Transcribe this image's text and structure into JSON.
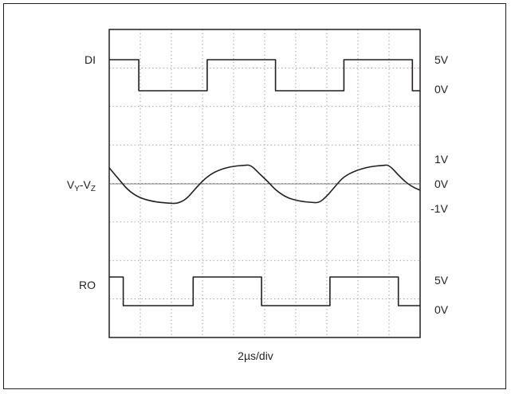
{
  "chart_data": {
    "type": "line",
    "title": "",
    "xlabel": "2µs/div",
    "divisions": {
      "x": 10,
      "y": 8
    },
    "channels": [
      {
        "name": "DI",
        "name_main": "DI",
        "name_sub": "",
        "levels": [
          "5V",
          "0V"
        ],
        "div_per_level": 1.0,
        "center_div": 6.5,
        "y_pixels_hint": "top",
        "points": [
          [
            0,
            5
          ],
          [
            0.95,
            5
          ],
          [
            0.95,
            0
          ],
          [
            3.15,
            0
          ],
          [
            3.15,
            5
          ],
          [
            5.35,
            5
          ],
          [
            5.35,
            0
          ],
          [
            7.55,
            0
          ],
          [
            7.55,
            5
          ],
          [
            9.75,
            5
          ],
          [
            9.75,
            0
          ],
          [
            10,
            0
          ]
        ]
      },
      {
        "name": "VY-VZ",
        "name_main": "V",
        "name_sub_1": "Y",
        "name_mid": "-V",
        "name_sub_2": "Z",
        "levels": [
          "1V",
          "0V",
          "-1V"
        ],
        "points": [
          [
            0,
            0.65
          ],
          [
            0.3,
            0.2
          ],
          [
            0.6,
            -0.25
          ],
          [
            0.95,
            -0.55
          ],
          [
            1.4,
            -0.72
          ],
          [
            1.9,
            -0.78
          ],
          [
            2.2,
            -0.8
          ],
          [
            2.5,
            -0.6
          ],
          [
            2.8,
            -0.15
          ],
          [
            3.15,
            0.3
          ],
          [
            3.5,
            0.55
          ],
          [
            3.9,
            0.7
          ],
          [
            4.3,
            0.75
          ],
          [
            4.55,
            0.77
          ],
          [
            4.8,
            0.45
          ],
          [
            5.1,
            0.1
          ],
          [
            5.35,
            -0.25
          ],
          [
            5.7,
            -0.55
          ],
          [
            6.1,
            -0.7
          ],
          [
            6.5,
            -0.75
          ],
          [
            6.75,
            -0.77
          ],
          [
            7.0,
            -0.5
          ],
          [
            7.3,
            -0.05
          ],
          [
            7.55,
            0.3
          ],
          [
            7.95,
            0.55
          ],
          [
            8.4,
            0.7
          ],
          [
            8.8,
            0.75
          ],
          [
            9.0,
            0.77
          ],
          [
            9.3,
            0.35
          ],
          [
            9.6,
            0.0
          ],
          [
            9.85,
            -0.18
          ],
          [
            10,
            -0.25
          ]
        ]
      },
      {
        "name": "RO",
        "name_main": "RO",
        "name_sub": "",
        "levels": [
          "5V",
          "0V"
        ],
        "points": [
          [
            0,
            5
          ],
          [
            0.45,
            5
          ],
          [
            0.45,
            0
          ],
          [
            2.7,
            0
          ],
          [
            2.7,
            5
          ],
          [
            4.9,
            5
          ],
          [
            4.9,
            0
          ],
          [
            7.1,
            0
          ],
          [
            7.1,
            5
          ],
          [
            9.3,
            5
          ],
          [
            9.3,
            0
          ],
          [
            10,
            0
          ]
        ]
      }
    ]
  }
}
